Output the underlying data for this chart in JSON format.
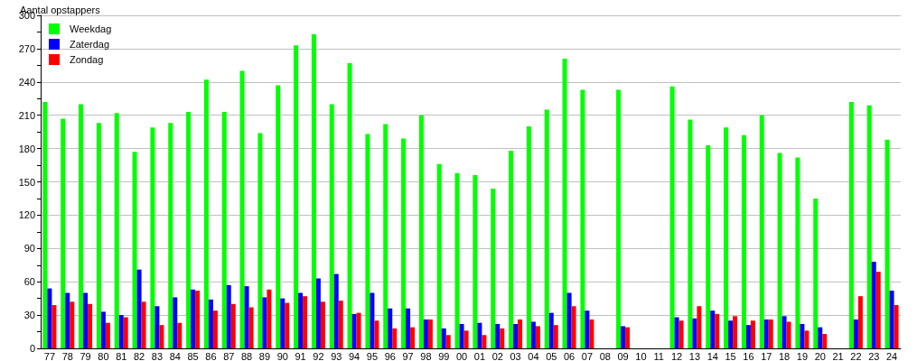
{
  "chart_data": {
    "type": "bar",
    "ylabel": "Aantal opstappers",
    "categories": [
      "77",
      "78",
      "79",
      "80",
      "81",
      "82",
      "83",
      "84",
      "85",
      "86",
      "87",
      "88",
      "89",
      "90",
      "91",
      "92",
      "93",
      "94",
      "95",
      "96",
      "97",
      "98",
      "99",
      "00",
      "01",
      "02",
      "03",
      "04",
      "05",
      "06",
      "07",
      "08",
      "09",
      "10",
      "11",
      "12",
      "13",
      "14",
      "15",
      "16",
      "17",
      "18",
      "19",
      "20",
      "21",
      "22",
      "23",
      "24"
    ],
    "series": [
      {
        "name": "Weekdag",
        "color": "#00ff00",
        "values": [
          222,
          207,
          220,
          203,
          212,
          177,
          199,
          203,
          213,
          242,
          213,
          250,
          194,
          237,
          273,
          283,
          220,
          257,
          193,
          202,
          189,
          210,
          166,
          158,
          156,
          144,
          178,
          200,
          215,
          261,
          233,
          null,
          233,
          null,
          null,
          236,
          206,
          183,
          199,
          192,
          210,
          176,
          172,
          135,
          null,
          222,
          219,
          188
        ]
      },
      {
        "name": "Zaterdag",
        "color": "#0000ff",
        "values": [
          54,
          50,
          50,
          33,
          30,
          71,
          38,
          46,
          53,
          44,
          57,
          56,
          46,
          45,
          50,
          63,
          67,
          31,
          50,
          36,
          36,
          26,
          18,
          22,
          23,
          22,
          22,
          24,
          32,
          50,
          34,
          null,
          20,
          null,
          null,
          28,
          27,
          34,
          25,
          21,
          26,
          29,
          22,
          19,
          null,
          26,
          78,
          52
        ]
      },
      {
        "name": "Zondag",
        "color": "#ff0000",
        "values": [
          39,
          42,
          40,
          23,
          28,
          42,
          21,
          23,
          52,
          34,
          40,
          37,
          53,
          41,
          47,
          42,
          43,
          32,
          25,
          18,
          19,
          26,
          12,
          16,
          12,
          18,
          26,
          20,
          21,
          38,
          26,
          null,
          19,
          null,
          null,
          25,
          38,
          31,
          29,
          25,
          26,
          24,
          16,
          13,
          null,
          47,
          69,
          39
        ]
      }
    ],
    "ylim": [
      0,
      300
    ],
    "yticks": [
      0,
      {
        "value": 15,
        "label": null
      },
      30,
      {
        "value": 45,
        "label": null
      },
      60,
      {
        "value": 75,
        "label": null
      },
      90,
      {
        "value": 105,
        "label": null
      },
      120,
      {
        "value": 135,
        "label": null
      },
      150,
      {
        "value": 165,
        "label": null
      },
      180,
      {
        "value": 195,
        "label": null
      },
      210,
      {
        "value": 225,
        "label": null
      },
      240,
      {
        "value": 255,
        "label": null
      },
      270,
      {
        "value": 285,
        "label": null
      },
      300
    ],
    "grid": "y",
    "legend": "top left"
  }
}
